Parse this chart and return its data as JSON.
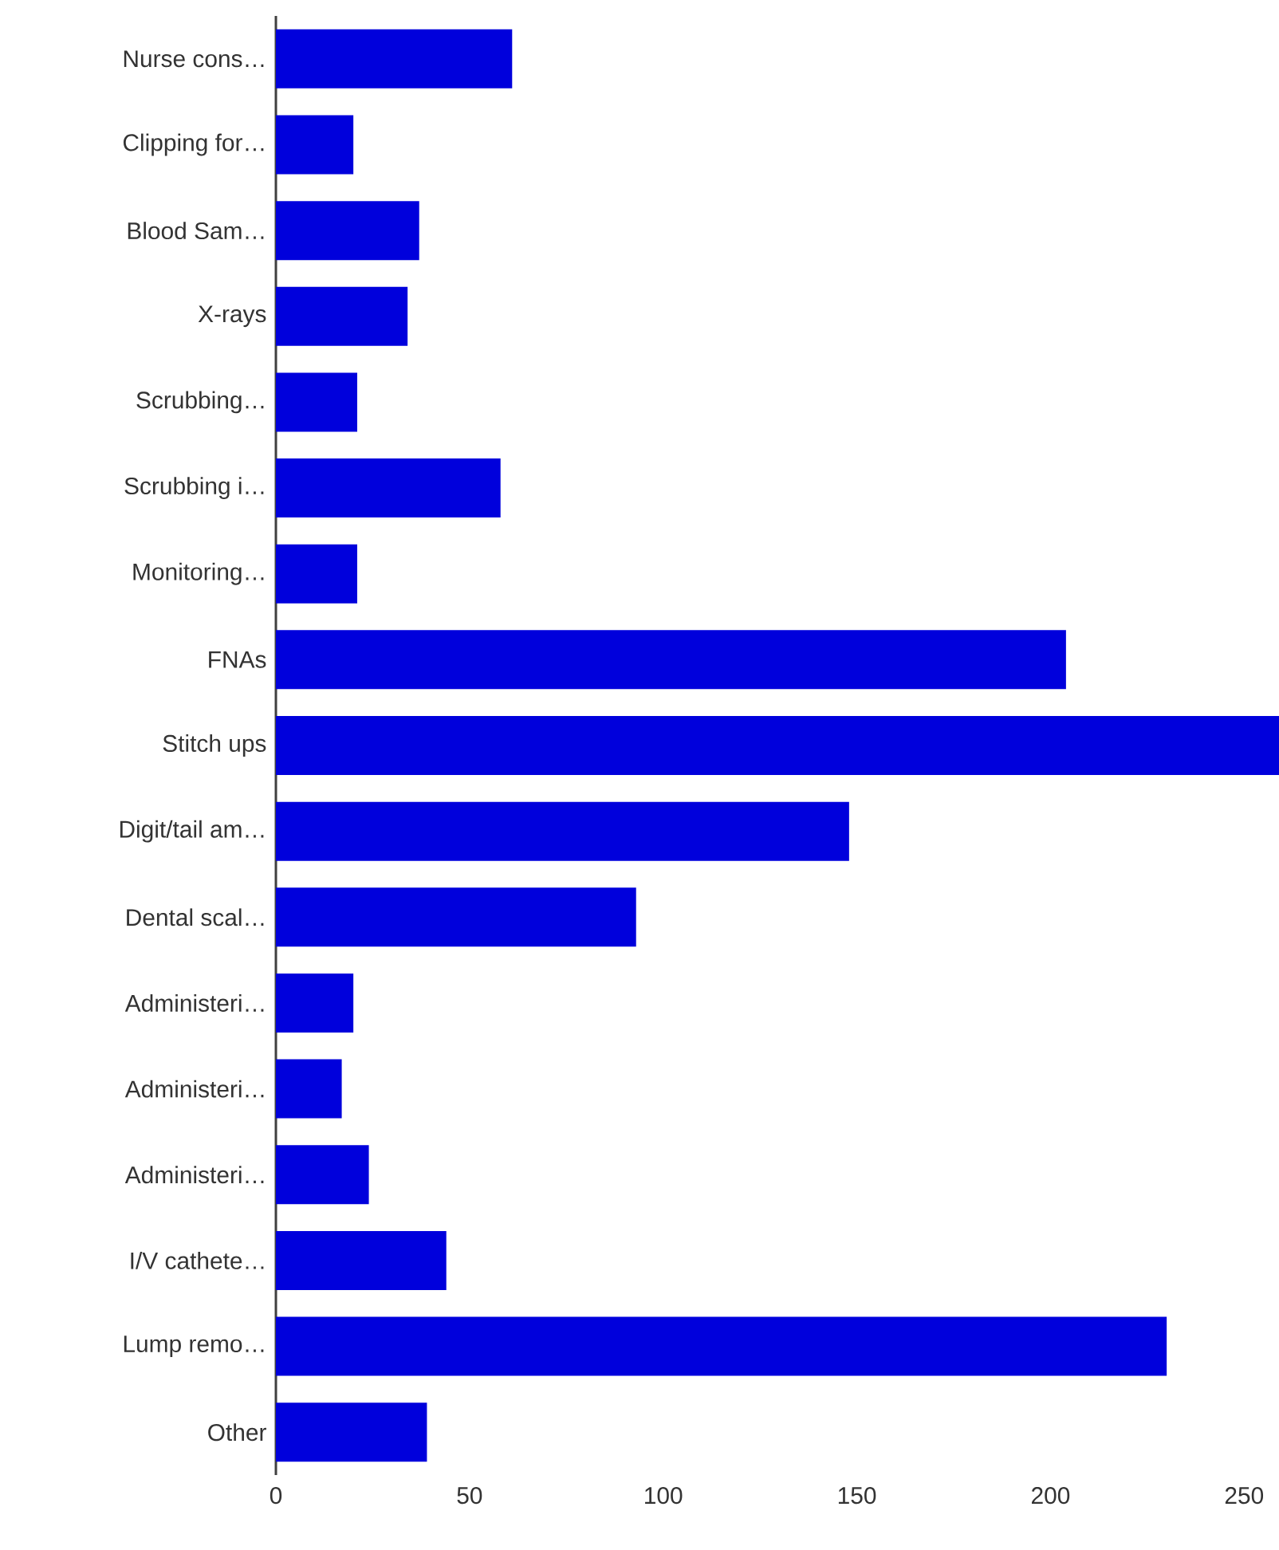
{
  "chart_data": {
    "type": "bar",
    "orientation": "horizontal",
    "color": "#0000dc",
    "categories": [
      "Nurse cons…",
      "Clipping for…",
      "Blood Sam…",
      "X-rays",
      "Scrubbing…",
      "Scrubbing i…",
      "Monitoring…",
      "FNAs",
      "Stitch ups",
      "Digit/tail am…",
      "Dental scal…",
      "Administeri…",
      "Administeri…",
      "Administeri…",
      "I/V cathete…",
      "Lump remo…",
      "Other"
    ],
    "values": [
      61,
      20,
      37,
      34,
      21,
      58,
      21,
      204,
      259,
      148,
      93,
      20,
      17,
      24,
      44,
      230,
      39
    ],
    "xlim": [
      0,
      259
    ],
    "xticks": [
      0,
      50,
      100,
      150,
      200,
      250
    ]
  }
}
